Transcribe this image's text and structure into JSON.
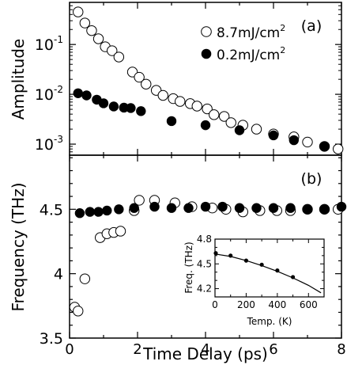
{
  "chart_data": [
    {
      "panel_label": "(a)",
      "type": "scatter",
      "ylabel": "Amplitude",
      "xlabel": "",
      "y_scale": "log",
      "xlim": [
        0,
        8
      ],
      "ylim": [
        0.0006,
        0.7
      ],
      "x_ticks": [
        "0",
        "2",
        "4",
        "6",
        "8"
      ],
      "y_ticks": [
        {
          "value": 0.1,
          "base": "10",
          "exp": "-1"
        },
        {
          "value": 0.01,
          "base": "10",
          "exp": "-2"
        },
        {
          "value": 0.001,
          "base": "10",
          "exp": "-3"
        }
      ],
      "legend_position": "top-right",
      "series": [
        {
          "name": "8.7mJ/cm",
          "name_sup": "2",
          "marker": "open-circle",
          "x": [
            0.25,
            0.45,
            0.65,
            0.85,
            1.05,
            1.25,
            1.45,
            1.85,
            2.05,
            2.25,
            2.55,
            2.75,
            3.05,
            3.25,
            3.55,
            3.75,
            4.05,
            4.25,
            4.55,
            4.75,
            5.1,
            5.5,
            6.0,
            6.6,
            7.0,
            7.5,
            7.9
          ],
          "y": [
            0.45,
            0.27,
            0.19,
            0.13,
            0.09,
            0.075,
            0.056,
            0.028,
            0.022,
            0.016,
            0.012,
            0.0095,
            0.0082,
            0.0072,
            0.0065,
            0.0058,
            0.0051,
            0.0039,
            0.0036,
            0.0027,
            0.0024,
            0.002,
            0.0016,
            0.0014,
            0.0011,
            0.0009,
            0.0008
          ]
        },
        {
          "name": "0.2mJ/cm",
          "name_sup": "2",
          "marker": "filled-circle",
          "x": [
            0.25,
            0.5,
            0.8,
            1.0,
            1.3,
            1.6,
            1.8,
            2.1,
            3.0,
            4.0,
            5.0,
            6.0,
            6.6,
            7.5
          ],
          "y": [
            0.0105,
            0.0095,
            0.0078,
            0.0066,
            0.0057,
            0.0054,
            0.0053,
            0.0046,
            0.0029,
            0.0024,
            0.0019,
            0.0015,
            0.0012,
            0.0009
          ]
        }
      ]
    },
    {
      "panel_label": "(b)",
      "type": "scatter",
      "ylabel": "Frequency (THz)",
      "xlabel": "Time Delay (ps)",
      "xlim": [
        0,
        8
      ],
      "ylim": [
        3.5,
        4.92
      ],
      "x_ticks": [
        "0",
        "2",
        "4",
        "6",
        "8"
      ],
      "y_ticks": [
        "3.5",
        "4",
        "4.5"
      ],
      "series": [
        {
          "marker": "open-circle",
          "x": [
            0.15,
            0.25,
            0.45,
            0.9,
            1.1,
            1.3,
            1.5,
            1.9,
            2.05,
            2.5,
            3.1,
            3.6,
            4.2,
            4.6,
            5.1,
            5.6,
            6.1,
            6.5,
            7.0,
            7.5,
            7.9
          ],
          "y": [
            3.74,
            3.71,
            3.96,
            4.28,
            4.31,
            4.32,
            4.33,
            4.49,
            4.57,
            4.57,
            4.55,
            4.52,
            4.51,
            4.5,
            4.48,
            4.49,
            4.49,
            4.49,
            4.5,
            4.5,
            4.5
          ]
        },
        {
          "marker": "filled-circle",
          "x": [
            0.3,
            0.6,
            0.85,
            1.1,
            1.45,
            1.9,
            2.5,
            3.0,
            3.5,
            4.0,
            4.5,
            5.0,
            5.5,
            6.0,
            6.5,
            7.0,
            7.5,
            8.0
          ],
          "y": [
            4.47,
            4.48,
            4.48,
            4.49,
            4.5,
            4.51,
            4.52,
            4.51,
            4.51,
            4.52,
            4.52,
            4.51,
            4.51,
            4.51,
            4.51,
            4.5,
            4.5,
            4.52
          ]
        }
      ]
    },
    {
      "panel_label": "inset",
      "type": "scatter",
      "ylabel": "Freq. (THz)",
      "xlabel": "Temp. (K)",
      "xlim": [
        0,
        700
      ],
      "ylim": [
        4.1,
        4.8
      ],
      "x_ticks": [
        "0",
        "200",
        "400",
        "600"
      ],
      "y_ticks": [
        "4.2",
        "4.5",
        "4.8"
      ],
      "series": [
        {
          "marker": "filled-circle",
          "x": [
            5,
            100,
            200,
            300,
            400,
            500
          ],
          "y": [
            4.63,
            4.6,
            4.54,
            4.49,
            4.42,
            4.34
          ]
        },
        {
          "marker": "line",
          "x": [
            0,
            100,
            200,
            300,
            400,
            500,
            600,
            680
          ],
          "y": [
            4.62,
            4.59,
            4.54,
            4.48,
            4.41,
            4.33,
            4.24,
            4.15
          ]
        }
      ]
    }
  ]
}
